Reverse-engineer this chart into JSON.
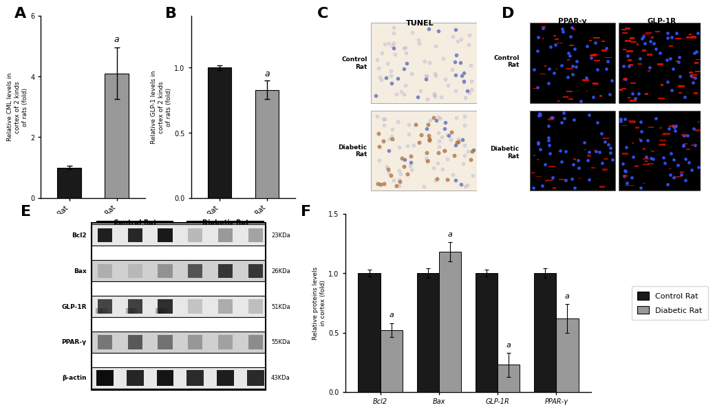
{
  "panel_A": {
    "categories": [
      "Control Rat",
      "Diabetic Rat"
    ],
    "values": [
      1.0,
      4.1
    ],
    "errors": [
      0.05,
      0.85
    ],
    "colors": [
      "#1a1a1a",
      "#999999"
    ],
    "ylabel": "Relative CML levels in\ncortex of 2 kinds\nof rats (fold)",
    "ylim": [
      0,
      6
    ],
    "yticks": [
      0,
      2,
      4,
      6
    ],
    "sig_labels": [
      "",
      "a"
    ]
  },
  "panel_B": {
    "categories": [
      "Control Rat",
      "Diabetic Rat"
    ],
    "values": [
      1.0,
      0.83
    ],
    "errors": [
      0.02,
      0.07
    ],
    "colors": [
      "#1a1a1a",
      "#999999"
    ],
    "ylabel": "Relative GLP-1 levels in\ncortex of 2 kinds\nof rats (fold)",
    "ylim": [
      0.0,
      1.4
    ],
    "yticks": [
      0.0,
      0.5,
      1.0
    ],
    "sig_labels": [
      "",
      "a"
    ]
  },
  "panel_F": {
    "categories": [
      "Bcl2",
      "Bax",
      "GLP-1R",
      "PPAR-γ"
    ],
    "control_values": [
      1.0,
      1.0,
      1.0,
      1.0
    ],
    "diabetic_values": [
      0.52,
      1.18,
      0.23,
      0.62
    ],
    "control_errors": [
      0.03,
      0.04,
      0.03,
      0.04
    ],
    "diabetic_errors": [
      0.06,
      0.08,
      0.1,
      0.12
    ],
    "control_color": "#1a1a1a",
    "diabetic_color": "#999999",
    "ylabel": "Relative proteins levels\nin cortex (fold)",
    "ylim": [
      0,
      1.5
    ],
    "yticks": [
      0.0,
      0.5,
      1.0,
      1.5
    ],
    "sig_labels_diabetic": [
      "a",
      "a",
      "a",
      "a"
    ]
  },
  "label_fontsize": 16,
  "tick_fontsize": 7,
  "background_color": "#ffffff"
}
